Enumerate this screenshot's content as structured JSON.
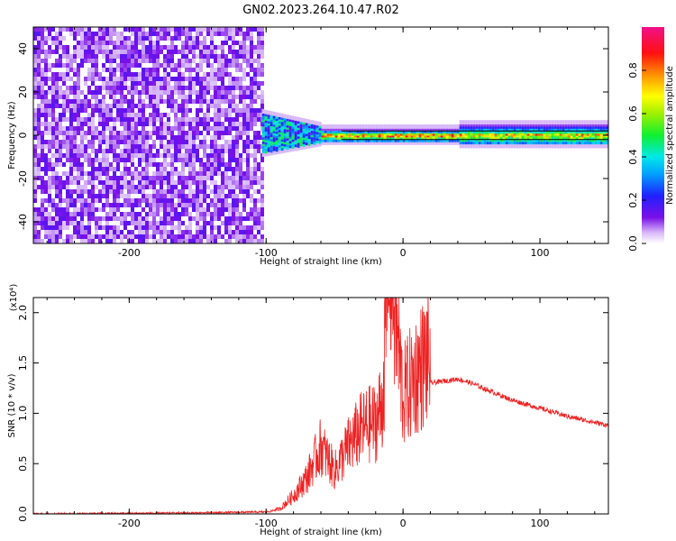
{
  "title": "GN02.2023.264.10.47.R02",
  "chart_data": [
    {
      "type": "heatmap",
      "title": "GN02.2023.264.10.47.R02",
      "xlabel": "Height of straight line (km)",
      "ylabel": "Frequency (Hz)",
      "xlim": [
        -270,
        150
      ],
      "ylim": [
        -50,
        50
      ],
      "x_ticks": [
        "-200",
        "-100",
        "0",
        "100"
      ],
      "y_ticks": [
        "-40",
        "-20",
        "0",
        "20",
        "40"
      ],
      "colorbar": {
        "label": "Normalized spectral amplitude",
        "range": [
          0,
          1
        ],
        "ticks": [
          "0.0",
          "0.2",
          "0.4",
          "0.6",
          "0.8"
        ],
        "colormap": "rainbow (white → violet → blue → cyan → green → yellow → red → magenta)"
      },
      "regions": [
        {
          "x": [
            -270,
            -103
          ],
          "description": "broadband noise, amplitude ~0.05-0.15 across all frequencies"
        },
        {
          "x": [
            -103,
            -60
          ],
          "freq_spread_hz": [
            -8,
            10
          ],
          "peak_amplitude": 0.5
        },
        {
          "x": [
            -60,
            150
          ],
          "freq_center_hz": 0,
          "freq_width_hz": 4,
          "peak_amplitude": 0.95
        }
      ]
    },
    {
      "type": "line",
      "xlabel": "Height of straight line (km)",
      "ylabel": "SNR (10 * v/v)",
      "y_multiplier": "(x10⁴)",
      "xlim": [
        -270,
        150
      ],
      "ylim": [
        0,
        2.15
      ],
      "x_ticks": [
        "-200",
        "-100",
        "0",
        "100"
      ],
      "y_ticks": [
        "0.0",
        "0.5",
        "1.0",
        "1.5",
        "2.0"
      ],
      "series_color": "#ee2222",
      "x": [
        -270,
        -150,
        -100,
        -90,
        -80,
        -70,
        -60,
        -50,
        -40,
        -30,
        -20,
        -15,
        -10,
        0,
        10,
        20,
        30,
        40,
        50,
        60,
        80,
        100,
        120,
        150
      ],
      "y": [
        0.0,
        0.01,
        0.02,
        0.04,
        0.15,
        0.3,
        0.55,
        0.35,
        0.55,
        0.7,
        0.75,
        0.9,
        2.13,
        0.95,
        1.15,
        1.3,
        1.32,
        1.34,
        1.3,
        1.24,
        1.13,
        1.05,
        0.97,
        0.88
      ]
    }
  ]
}
